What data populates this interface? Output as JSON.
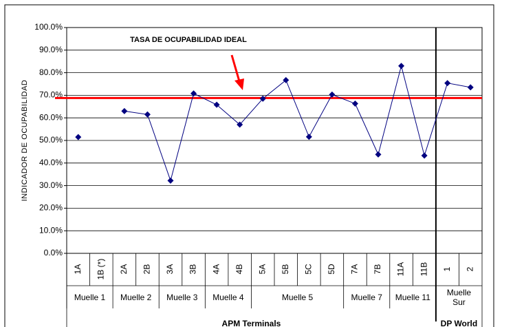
{
  "chart_data": {
    "type": "line",
    "y_label": "INDICADOR DE OCUPABILIDAD",
    "categories": [
      "1A",
      "1B (*)",
      "2A",
      "2B",
      "3A",
      "3B",
      "4A",
      "4B",
      "5A",
      "5B",
      "5C",
      "5D",
      "7A",
      "7B",
      "11A",
      "11B",
      "1",
      "2"
    ],
    "series": [
      {
        "color": "#000080",
        "values": [
          51.5,
          null,
          63,
          61.5,
          32.2,
          70.8,
          65.8,
          57,
          68.5,
          76.7,
          51.6,
          70.3,
          66.3,
          43.8,
          83,
          43.3,
          75.4,
          73.5
        ]
      }
    ],
    "groups": [
      {
        "label": "Muelle 1",
        "span": 2
      },
      {
        "label": "Muelle 2",
        "span": 2
      },
      {
        "label": "Muelle 3",
        "span": 2
      },
      {
        "label": "Muelle 4",
        "span": 2
      },
      {
        "label": "Muelle 5",
        "span": 4
      },
      {
        "label": "Muelle 7",
        "span": 2
      },
      {
        "label": "Muelle 11",
        "span": 2
      },
      {
        "label": "Muelle Sur",
        "span": 2
      }
    ],
    "operators": [
      {
        "label": "APM Terminals",
        "span": 16
      },
      {
        "label": "DP World",
        "span": 2
      }
    ],
    "reference_line": {
      "value": 68.8,
      "color": "#ff0000",
      "label": "TASA DE OCUPABILIDAD IDEAL"
    },
    "ylim": [
      0,
      100
    ],
    "yticks": [
      {
        "value": 0,
        "label": "0.0%"
      },
      {
        "value": 10,
        "label": "10.0%"
      },
      {
        "value": 20,
        "label": "20.0%"
      },
      {
        "value": 30,
        "label": "30.0%"
      },
      {
        "value": 40,
        "label": "40.0%"
      },
      {
        "value": 50,
        "label": "50.0%"
      },
      {
        "value": 60,
        "label": "60.0%"
      },
      {
        "value": 70,
        "label": "70.0%"
      },
      {
        "value": 80,
        "label": "80.0%"
      },
      {
        "value": 90,
        "label": "90.0%"
      },
      {
        "value": 100,
        "label": "100.0%"
      }
    ],
    "grid": true
  }
}
